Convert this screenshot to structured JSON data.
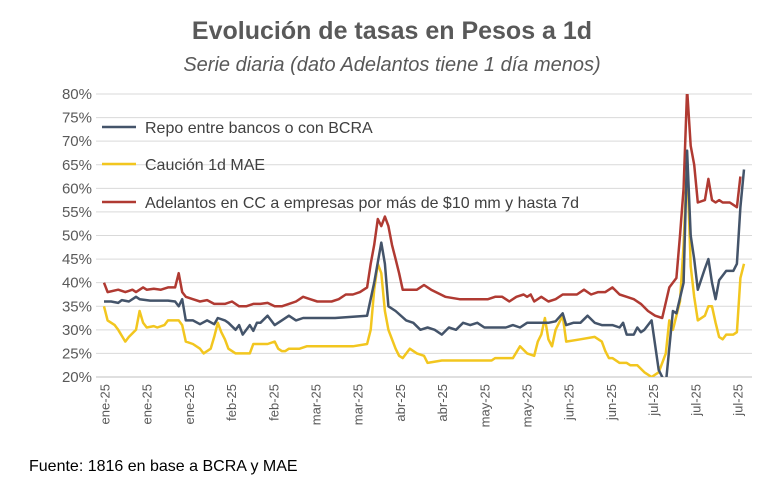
{
  "chart_data": {
    "type": "line",
    "title": "Evolución de tasas en Pesos a 1d",
    "subtitle": "Serie diaria (dato Adelantos tiene 1 día menos)",
    "source": "Fuente: 1816 en base a BCRA y MAE",
    "ylim": [
      0.2,
      0.8
    ],
    "y_ticks": [
      "20%",
      "25%",
      "30%",
      "35%",
      "40%",
      "45%",
      "50%",
      "55%",
      "60%",
      "65%",
      "70%",
      "75%",
      "80%"
    ],
    "x_tick_labels": [
      "ene-25",
      "ene-25",
      "ene-25",
      "feb-25",
      "feb-25",
      "mar-25",
      "mar-25",
      "abr-25",
      "abr-25",
      "may-25",
      "may-25",
      "jun-25",
      "jun-25",
      "jul-25",
      "jul-25",
      "jul-25"
    ],
    "grid": true,
    "legend_position": "top-left",
    "series": [
      {
        "name": "Repo entre bancos o con BCRA",
        "color": "#44546A",
        "points": [
          [
            0,
            36.0
          ],
          [
            2,
            36.0
          ],
          [
            4,
            35.7
          ],
          [
            5,
            36.3
          ],
          [
            7,
            36.0
          ],
          [
            9,
            37.0
          ],
          [
            10,
            36.5
          ],
          [
            13,
            36.2
          ],
          [
            18,
            36.2
          ],
          [
            20,
            36.0
          ],
          [
            21,
            35.0
          ],
          [
            22,
            36.5
          ],
          [
            23,
            32.0
          ],
          [
            25,
            32.0
          ],
          [
            27,
            31.2
          ],
          [
            29,
            32.0
          ],
          [
            31,
            31.2
          ],
          [
            32,
            32.5
          ],
          [
            34,
            32.0
          ],
          [
            35,
            31.5
          ],
          [
            37,
            30.0
          ],
          [
            38,
            31.0
          ],
          [
            39,
            29.0
          ],
          [
            41,
            31.0
          ],
          [
            42,
            29.8
          ],
          [
            43,
            31.5
          ],
          [
            44,
            31.5
          ],
          [
            46,
            33.0
          ],
          [
            48,
            31.0
          ],
          [
            50,
            32.0
          ],
          [
            52,
            33.0
          ],
          [
            54,
            32.0
          ],
          [
            56,
            32.5
          ],
          [
            65,
            32.5
          ],
          [
            74,
            33.0
          ],
          [
            76,
            40.0
          ],
          [
            78,
            48.5
          ],
          [
            79,
            44.0
          ],
          [
            80,
            35.0
          ],
          [
            82,
            34.0
          ],
          [
            85,
            32.0
          ],
          [
            87,
            31.5
          ],
          [
            89,
            30.0
          ],
          [
            91,
            30.5
          ],
          [
            93,
            30.0
          ],
          [
            95,
            29.0
          ],
          [
            97,
            30.5
          ],
          [
            99,
            30.0
          ],
          [
            101,
            31.5
          ],
          [
            103,
            31.0
          ],
          [
            105,
            31.5
          ],
          [
            107,
            30.5
          ],
          [
            113,
            30.5
          ],
          [
            115,
            31.0
          ],
          [
            117,
            30.5
          ],
          [
            119,
            31.5
          ],
          [
            125,
            31.5
          ],
          [
            127,
            31.8
          ],
          [
            129,
            33.5
          ],
          [
            130,
            31.0
          ],
          [
            132,
            31.5
          ],
          [
            134,
            31.5
          ],
          [
            136,
            33.0
          ],
          [
            138,
            31.5
          ],
          [
            140,
            31.0
          ],
          [
            143,
            31.0
          ],
          [
            145,
            30.5
          ],
          [
            146,
            31.5
          ],
          [
            147,
            29.0
          ],
          [
            149,
            29.0
          ],
          [
            150,
            30.5
          ],
          [
            151,
            29.5
          ],
          [
            152,
            30.0
          ],
          [
            154,
            32.0
          ],
          [
            156,
            21.5
          ],
          [
            158,
            18.5
          ],
          [
            160,
            34.0
          ],
          [
            161,
            33.5
          ],
          [
            163,
            40.0
          ],
          [
            164,
            68.0
          ],
          [
            165,
            50.0
          ],
          [
            166,
            45.0
          ],
          [
            167,
            38.5
          ],
          [
            169,
            43.0
          ],
          [
            170,
            45.0
          ],
          [
            171,
            40.0
          ],
          [
            172,
            36.5
          ],
          [
            173,
            40.5
          ],
          [
            175,
            42.5
          ],
          [
            177,
            42.5
          ],
          [
            178,
            44.0
          ],
          [
            179,
            56.0
          ],
          [
            180,
            64.0
          ]
        ]
      },
      {
        "name": "Caución 1d MAE",
        "color": "#F2C61F",
        "points": [
          [
            0,
            35.0
          ],
          [
            1,
            32.0
          ],
          [
            3,
            31.0
          ],
          [
            4,
            30.0
          ],
          [
            6,
            27.5
          ],
          [
            7,
            28.5
          ],
          [
            9,
            30.0
          ],
          [
            10,
            34.0
          ],
          [
            11,
            31.5
          ],
          [
            12,
            30.5
          ],
          [
            14,
            30.8
          ],
          [
            15,
            30.5
          ],
          [
            17,
            31.0
          ],
          [
            18,
            32.0
          ],
          [
            21,
            32.0
          ],
          [
            22,
            31.0
          ],
          [
            23,
            27.5
          ],
          [
            25,
            27.0
          ],
          [
            27,
            26.0
          ],
          [
            28,
            25.0
          ],
          [
            30,
            26.0
          ],
          [
            31,
            28.5
          ],
          [
            32,
            31.5
          ],
          [
            33,
            29.5
          ],
          [
            34,
            28.0
          ],
          [
            35,
            26.0
          ],
          [
            36,
            25.5
          ],
          [
            37,
            25.0
          ],
          [
            41,
            25.0
          ],
          [
            42,
            27.0
          ],
          [
            46,
            27.0
          ],
          [
            48,
            27.5
          ],
          [
            49,
            26.0
          ],
          [
            50,
            25.5
          ],
          [
            51,
            25.5
          ],
          [
            52,
            26.0
          ],
          [
            55,
            26.0
          ],
          [
            57,
            26.5
          ],
          [
            70,
            26.5
          ],
          [
            74,
            27.0
          ],
          [
            75,
            30.0
          ],
          [
            76,
            38.5
          ],
          [
            77,
            44.0
          ],
          [
            78,
            42.0
          ],
          [
            79,
            34.0
          ],
          [
            80,
            30.0
          ],
          [
            82,
            26.0
          ],
          [
            83,
            24.5
          ],
          [
            84,
            24.0
          ],
          [
            86,
            26.0
          ],
          [
            88,
            25.0
          ],
          [
            90,
            24.5
          ],
          [
            91,
            23.0
          ],
          [
            95,
            23.5
          ],
          [
            100,
            23.5
          ],
          [
            105,
            23.5
          ],
          [
            109,
            23.5
          ],
          [
            110,
            24.0
          ],
          [
            115,
            24.0
          ],
          [
            117,
            26.5
          ],
          [
            119,
            25.0
          ],
          [
            121,
            24.5
          ],
          [
            122,
            27.5
          ],
          [
            123,
            29.0
          ],
          [
            124,
            32.5
          ],
          [
            125,
            28.0
          ],
          [
            126,
            26.5
          ],
          [
            127,
            30.0
          ],
          [
            128,
            31.5
          ],
          [
            129,
            33.0
          ],
          [
            130,
            27.5
          ],
          [
            134,
            28.0
          ],
          [
            138,
            28.5
          ],
          [
            140,
            27.5
          ],
          [
            141,
            25.5
          ],
          [
            142,
            24.0
          ],
          [
            143,
            24.0
          ],
          [
            145,
            23.0
          ],
          [
            147,
            23.0
          ],
          [
            148,
            22.5
          ],
          [
            150,
            22.5
          ],
          [
            152,
            21.0
          ],
          [
            154,
            20.0
          ],
          [
            156,
            21.0
          ],
          [
            158,
            25.0
          ],
          [
            159,
            32.0
          ],
          [
            160,
            30.0
          ],
          [
            161,
            33.0
          ],
          [
            162,
            36.0
          ],
          [
            163,
            48.0
          ],
          [
            164,
            66.0
          ],
          [
            165,
            43.5
          ],
          [
            166,
            37.0
          ],
          [
            167,
            32.0
          ],
          [
            169,
            33.0
          ],
          [
            170,
            35.0
          ],
          [
            171,
            35.0
          ],
          [
            172,
            31.5
          ],
          [
            173,
            28.5
          ],
          [
            174,
            28.0
          ],
          [
            175,
            29.0
          ],
          [
            177,
            29.0
          ],
          [
            178,
            29.5
          ],
          [
            179,
            41.0
          ],
          [
            180,
            44.0
          ]
        ]
      },
      {
        "name": "Adelantos en CC a empresas por más de $10 mm y hasta 7d",
        "color": "#B03A32",
        "points": [
          [
            0,
            40.0
          ],
          [
            1,
            38.0
          ],
          [
            4,
            38.5
          ],
          [
            6,
            38.0
          ],
          [
            8,
            38.5
          ],
          [
            9,
            38.0
          ],
          [
            11,
            39.0
          ],
          [
            12,
            38.5
          ],
          [
            14,
            38.7
          ],
          [
            16,
            38.5
          ],
          [
            18,
            39.0
          ],
          [
            20,
            39.0
          ],
          [
            21,
            42.0
          ],
          [
            22,
            38.0
          ],
          [
            23,
            37.0
          ],
          [
            25,
            36.5
          ],
          [
            27,
            36.0
          ],
          [
            29,
            36.3
          ],
          [
            31,
            35.5
          ],
          [
            34,
            35.5
          ],
          [
            36,
            36.0
          ],
          [
            38,
            35.0
          ],
          [
            40,
            35.0
          ],
          [
            42,
            35.5
          ],
          [
            44,
            35.5
          ],
          [
            46,
            35.7
          ],
          [
            48,
            35.0
          ],
          [
            50,
            35.0
          ],
          [
            52,
            35.5
          ],
          [
            54,
            36.0
          ],
          [
            56,
            37.0
          ],
          [
            58,
            36.5
          ],
          [
            60,
            36.0
          ],
          [
            64,
            36.0
          ],
          [
            66,
            36.5
          ],
          [
            68,
            37.5
          ],
          [
            70,
            37.5
          ],
          [
            72,
            38.0
          ],
          [
            74,
            39.0
          ],
          [
            75,
            44.0
          ],
          [
            76,
            48.0
          ],
          [
            77,
            53.5
          ],
          [
            78,
            52.0
          ],
          [
            79,
            54.0
          ],
          [
            80,
            52.0
          ],
          [
            81,
            48.0
          ],
          [
            82,
            45.0
          ],
          [
            83,
            42.0
          ],
          [
            84,
            38.5
          ],
          [
            88,
            38.5
          ],
          [
            90,
            39.5
          ],
          [
            92,
            38.5
          ],
          [
            96,
            37.0
          ],
          [
            100,
            36.5
          ],
          [
            104,
            36.5
          ],
          [
            108,
            36.5
          ],
          [
            110,
            37.0
          ],
          [
            112,
            37.0
          ],
          [
            114,
            36.0
          ],
          [
            116,
            37.0
          ],
          [
            118,
            37.5
          ],
          [
            119,
            37.0
          ],
          [
            120,
            37.5
          ],
          [
            121,
            36.0
          ],
          [
            123,
            37.0
          ],
          [
            125,
            36.0
          ],
          [
            127,
            36.5
          ],
          [
            129,
            37.5
          ],
          [
            131,
            37.5
          ],
          [
            133,
            37.5
          ],
          [
            135,
            38.5
          ],
          [
            137,
            37.5
          ],
          [
            139,
            38.0
          ],
          [
            141,
            38.0
          ],
          [
            143,
            39.0
          ],
          [
            145,
            37.5
          ],
          [
            147,
            37.0
          ],
          [
            149,
            36.5
          ],
          [
            151,
            35.5
          ],
          [
            153,
            34.0
          ],
          [
            155,
            33.0
          ],
          [
            157,
            32.5
          ],
          [
            159,
            39.0
          ],
          [
            161,
            41.0
          ],
          [
            162,
            50.0
          ],
          [
            163,
            60.0
          ],
          [
            164,
            81.0
          ],
          [
            165,
            69.0
          ],
          [
            166,
            65.0
          ],
          [
            167,
            57.0
          ],
          [
            169,
            57.5
          ],
          [
            170,
            62.0
          ],
          [
            171,
            57.5
          ],
          [
            172,
            57.0
          ],
          [
            173,
            57.5
          ],
          [
            174,
            57.0
          ],
          [
            176,
            57.0
          ],
          [
            178,
            56.0
          ],
          [
            179,
            62.5
          ]
        ]
      }
    ]
  }
}
